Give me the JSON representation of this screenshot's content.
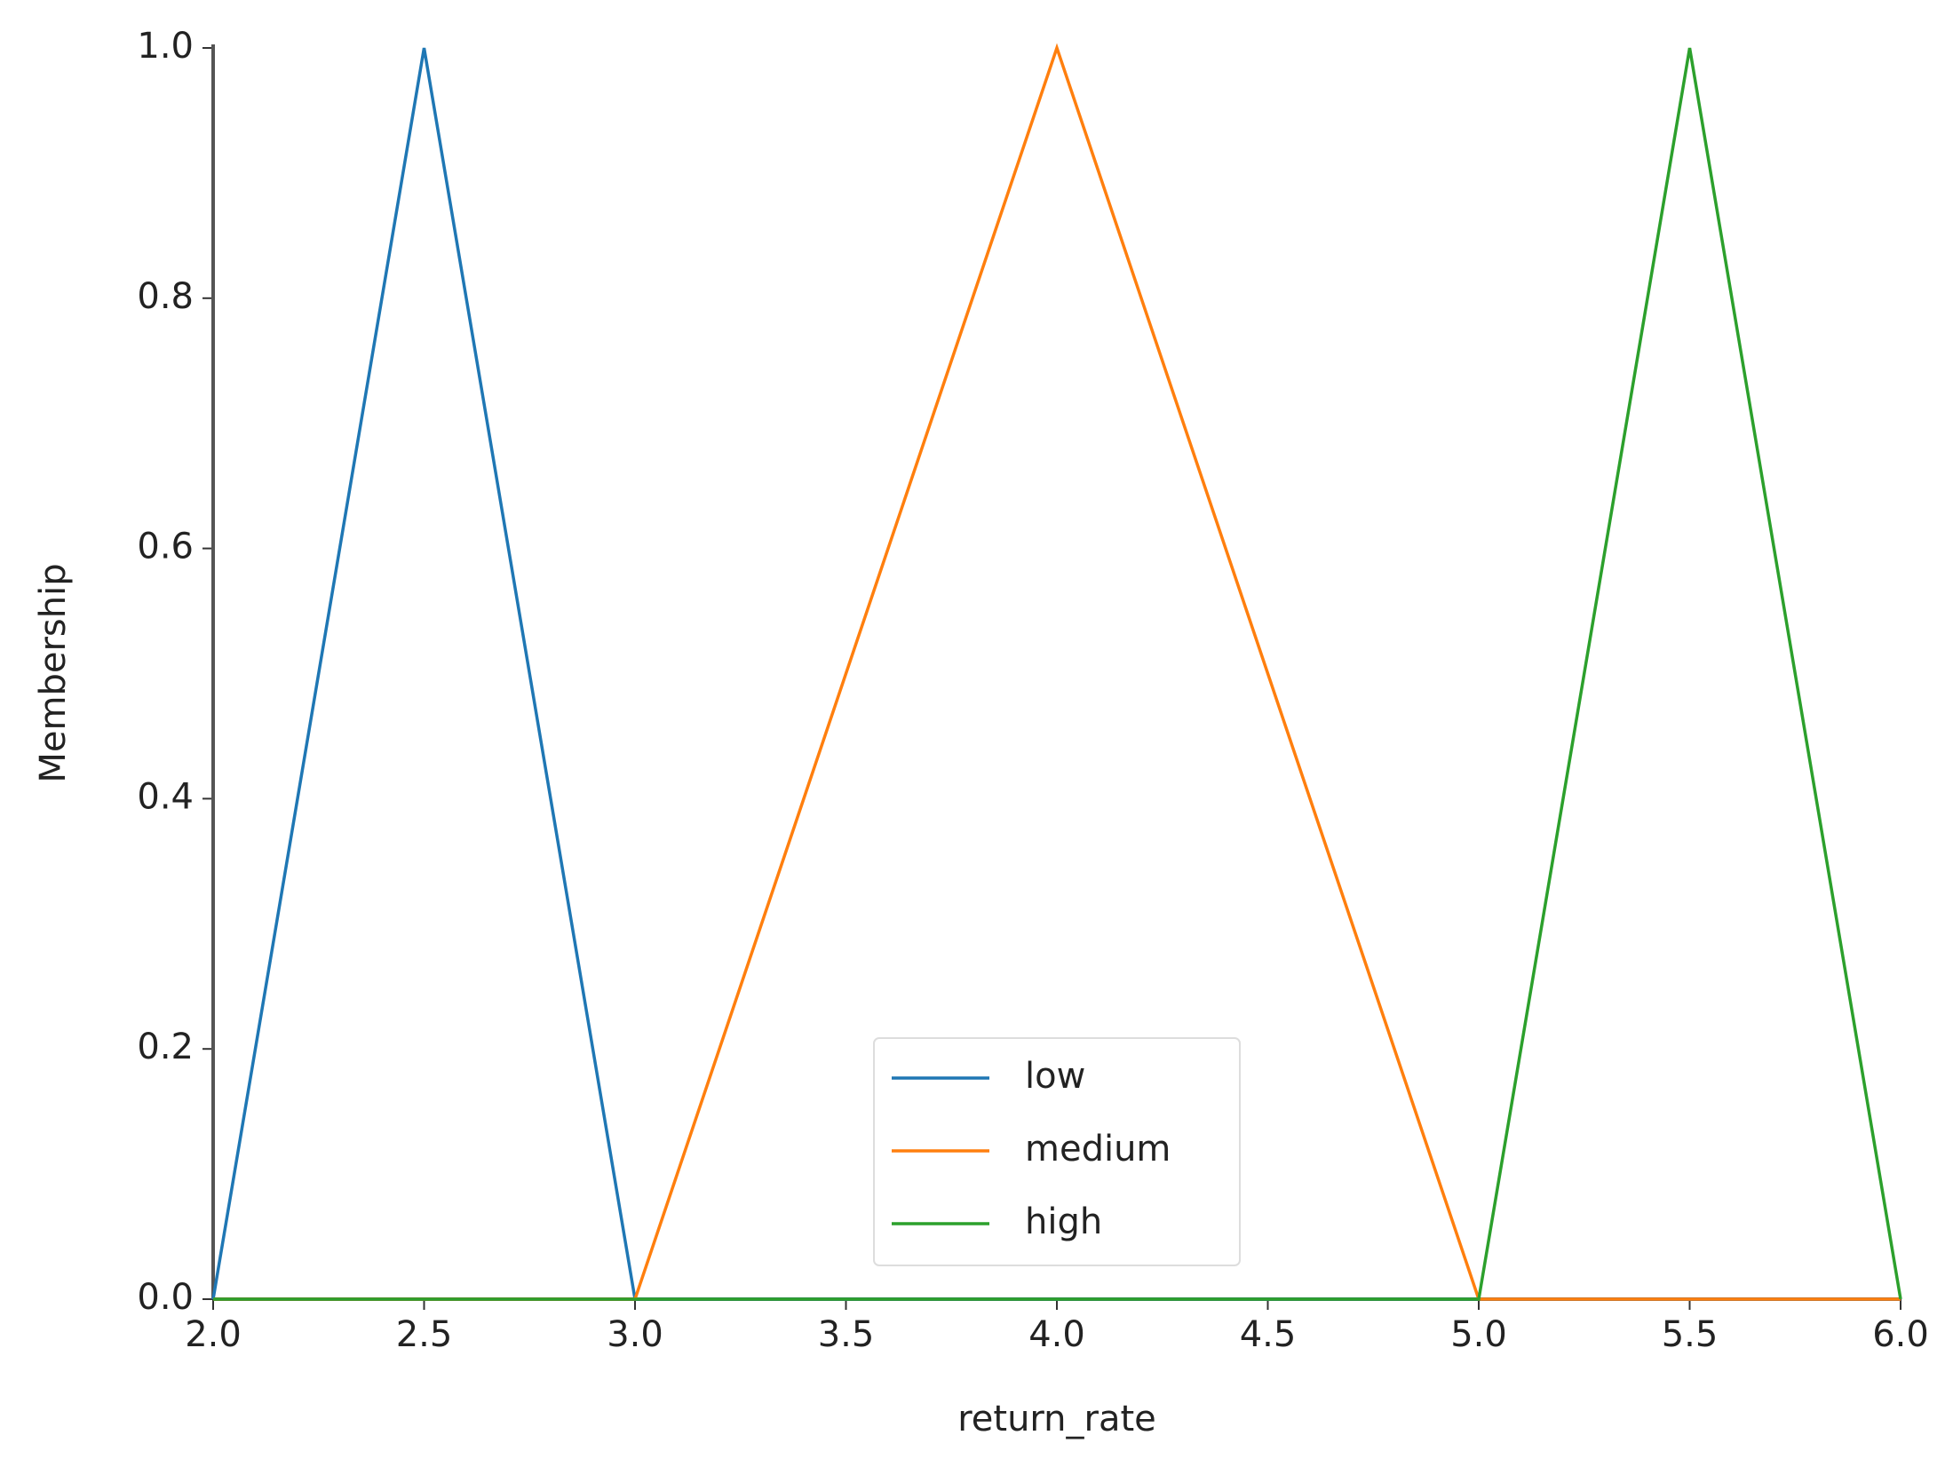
{
  "chart_data": {
    "type": "line",
    "xlabel": "return_rate",
    "ylabel": "Membership",
    "x": [
      2,
      2.5,
      3,
      4,
      5,
      5.5,
      6
    ],
    "series": [
      {
        "name": "low",
        "color": "#1f77b4",
        "values": [
          0,
          1,
          0,
          0,
          0,
          0,
          0
        ]
      },
      {
        "name": "medium",
        "color": "#ff7f0e",
        "values": [
          0,
          0,
          0,
          1,
          0,
          0,
          0
        ]
      },
      {
        "name": "high",
        "color": "#2ca02c",
        "values": [
          0,
          0,
          0,
          0,
          0,
          1,
          0
        ]
      }
    ],
    "xlim": [
      2,
      6
    ],
    "xticks": [
      {
        "value": 2,
        "label": "2.0"
      },
      2.5,
      {
        "value": 3,
        "label": "3.0"
      },
      3.5,
      {
        "value": 4,
        "label": "4.0"
      },
      4.5,
      {
        "value": 5,
        "label": "5.0"
      },
      5.5,
      {
        "value": 6,
        "label": "6.0"
      }
    ],
    "ylim": [
      0,
      1
    ],
    "yticks": [
      {
        "value": 0,
        "label": "0.0"
      },
      0.2,
      0.4,
      0.6,
      0.8,
      {
        "value": 1,
        "label": "1.0"
      }
    ],
    "grid": false,
    "legend": "lower center"
  }
}
